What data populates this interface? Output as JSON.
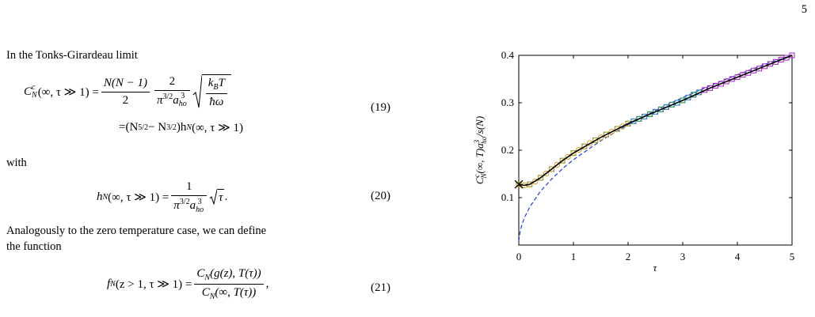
{
  "page_number": "5",
  "text": {
    "intro": "In the Tonks-Girardeau limit",
    "with": "with",
    "analog_lines": [
      "Analogously to the zero temperature case, we can define",
      "the function"
    ]
  },
  "eq19": {
    "lhs_C": "C",
    "lhs_sup": "c",
    "lhs_sub": "N",
    "lhs_args": "(∞, τ ≫ 1) =",
    "f1_num": "N(N − 1)",
    "f1_den": "2",
    "f2_num": "2",
    "f2_pi": "π",
    "f2_pi_exp": "3/2",
    "f2_a": "a",
    "f2_a_sup": "3",
    "f2_a_sub": "ho",
    "f3_k": "k",
    "f3_k_sub": "B",
    "f3_T": "T",
    "f3_den": "ħω",
    "l2_a": "=(N",
    "l2_exp1": "5/2",
    "l2_b": " − N",
    "l2_exp2": "3/2",
    "l2_c": ")h",
    "l2_sub": "N",
    "l2_d": "(∞, τ ≫ 1)",
    "number": "(19)"
  },
  "eq20": {
    "h": "h",
    "h_sub": "N",
    "args": "(∞, τ ≫ 1) =",
    "num": "1",
    "pi": "π",
    "pi_exp": "3/2",
    "a": "a",
    "a_sup": "3",
    "a_sub": "ho",
    "root": "τ",
    "end": ".",
    "number": "(20)"
  },
  "eq21": {
    "f": "f",
    "f_sub": "N",
    "args": "(z > 1, τ ≫ 1) =",
    "num_C": "C",
    "num_sub": "N",
    "num_args": "(g(z), T(τ))",
    "den_C": "C",
    "den_sub": "N",
    "den_args": "(∞, T(τ))",
    "end": ",",
    "number": "(21)"
  },
  "chart_data": {
    "type": "line",
    "xlabel": "τ",
    "ylabel": {
      "C": "C",
      "sup": "c",
      "sub": "N",
      "mid": "(∞, T)a",
      "a_sup": "3",
      "a_sub": "ho",
      "end": "/s(N)"
    },
    "xlim": [
      0,
      5
    ],
    "xticks": [
      0,
      1,
      2,
      3,
      4,
      5
    ],
    "ylim": [
      0,
      0.4
    ],
    "yticks": [
      0.1,
      0.2,
      0.3,
      0.4
    ],
    "series": [
      {
        "style": "dashed",
        "color": "#1f3fd0",
        "x": [
          0,
          0.02,
          0.05,
          0.1,
          0.2,
          0.4,
          0.6,
          0.8,
          1,
          1.5,
          2,
          2.5,
          3,
          3.5,
          4,
          4.5,
          5
        ],
        "values": [
          0.008,
          0.025,
          0.04,
          0.057,
          0.08,
          0.114,
          0.139,
          0.161,
          0.18,
          0.22,
          0.254,
          0.284,
          0.311,
          0.336,
          0.359,
          0.381,
          0.4
        ]
      },
      {
        "style": "square",
        "color": "#a020c0",
        "x": [
          2,
          2.1,
          2.2,
          2.3,
          2.4,
          2.5,
          2.6,
          2.7,
          2.8,
          2.9,
          3,
          3.1,
          3.2,
          3.3,
          3.4,
          3.5,
          3.6,
          3.7,
          3.8,
          3.9,
          4,
          4.1,
          4.2,
          4.3,
          4.4,
          4.5,
          4.6,
          4.7,
          4.8,
          4.9,
          5
        ],
        "values": [
          0.256,
          0.261,
          0.266,
          0.271,
          0.276,
          0.281,
          0.286,
          0.291,
          0.296,
          0.3,
          0.305,
          0.311,
          0.317,
          0.322,
          0.327,
          0.331,
          0.336,
          0.34,
          0.345,
          0.35,
          0.354,
          0.359,
          0.363,
          0.368,
          0.372,
          0.377,
          0.382,
          0.386,
          0.391,
          0.395,
          0.4
        ]
      },
      {
        "style": "circle",
        "color": "#1fb3c8",
        "x": [
          2,
          2.1,
          2.2,
          2.3,
          2.4,
          2.5,
          2.6,
          2.7,
          2.8,
          2.9,
          3,
          3.1,
          3.2,
          3.3
        ],
        "values": [
          0.256,
          0.261,
          0.266,
          0.271,
          0.276,
          0.281,
          0.286,
          0.291,
          0.296,
          0.3,
          0.305,
          0.311,
          0.317,
          0.322
        ]
      },
      {
        "style": "square",
        "color": "#3c9a5f",
        "x": [
          0,
          0.2,
          0.4,
          0.6,
          0.8,
          1,
          1.2,
          1.4,
          1.6,
          1.8,
          2,
          2.2,
          2.4,
          2.6,
          2.8,
          3,
          3.2
        ],
        "values": [
          0.128,
          0.128,
          0.142,
          0.16,
          0.178,
          0.194,
          0.208,
          0.221,
          0.233,
          0.245,
          0.256,
          0.266,
          0.276,
          0.286,
          0.296,
          0.305,
          0.317
        ]
      },
      {
        "style": "circle",
        "color": "#d9a020",
        "x": [
          0,
          0.1,
          0.2,
          0.3,
          0.4,
          0.5,
          0.6,
          0.7,
          0.8,
          0.9,
          1,
          1.1,
          1.2,
          1.3,
          1.4,
          1.5,
          1.6,
          1.7,
          1.8,
          1.9,
          2
        ],
        "values": [
          0.128,
          0.126,
          0.128,
          0.134,
          0.142,
          0.151,
          0.16,
          0.169,
          0.178,
          0.186,
          0.194,
          0.201,
          0.208,
          0.215,
          0.221,
          0.227,
          0.233,
          0.239,
          0.245,
          0.25,
          0.256
        ]
      },
      {
        "style": "solid",
        "color": "#000000",
        "x": [
          0,
          0.1,
          0.2,
          0.4,
          0.6,
          0.8,
          1,
          1.5,
          2,
          2.5,
          3,
          3.5,
          4,
          4.5,
          5
        ],
        "values": [
          0.128,
          0.126,
          0.128,
          0.142,
          0.16,
          0.178,
          0.194,
          0.227,
          0.256,
          0.281,
          0.305,
          0.331,
          0.354,
          0.377,
          0.4
        ]
      },
      {
        "style": "cross",
        "color": "#000000",
        "x": [
          0
        ],
        "values": [
          0.128
        ]
      }
    ]
  }
}
